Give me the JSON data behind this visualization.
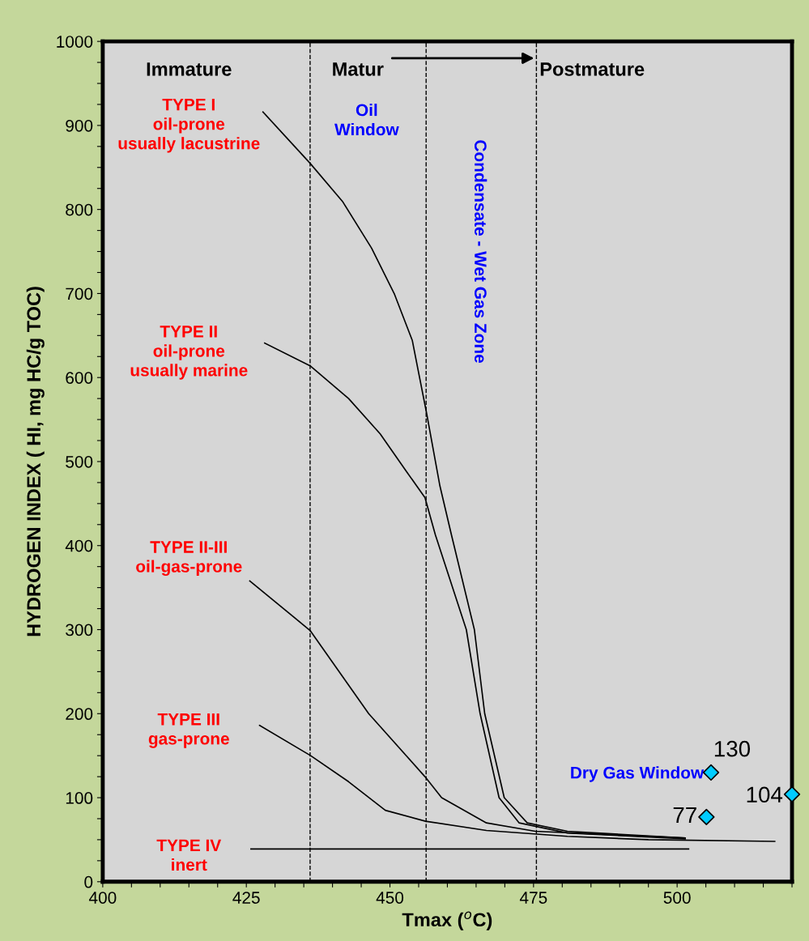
{
  "chart_data": {
    "type": "line",
    "xlabel": "Tmax ($^{o}$C)",
    "ylabel": "HYDROGEN INDEX ( HI, mg HC/g TOC)",
    "xlim": [
      400,
      520
    ],
    "ylim": [
      0,
      1000
    ],
    "xticks": [
      400,
      {
        "value": 405,
        "label": null
      },
      {
        "value": 410,
        "label": null
      },
      {
        "value": 415,
        "label": null
      },
      {
        "value": 420,
        "label": null
      },
      425,
      {
        "value": 430,
        "label": null
      },
      {
        "value": 435,
        "label": null
      },
      {
        "value": 440,
        "label": null
      },
      {
        "value": 445,
        "label": null
      },
      450,
      {
        "value": 455,
        "label": null
      },
      {
        "value": 460,
        "label": null
      },
      {
        "value": 465,
        "label": null
      },
      {
        "value": 470,
        "label": null
      },
      475,
      {
        "value": 480,
        "label": null
      },
      {
        "value": 485,
        "label": null
      },
      {
        "value": 490,
        "label": null
      },
      {
        "value": 495,
        "label": null
      },
      500,
      {
        "value": 505,
        "label": null
      },
      {
        "value": 510,
        "label": null
      },
      {
        "value": 515,
        "label": null
      },
      {
        "value": 520,
        "label": null
      }
    ],
    "yticks": [
      0,
      {
        "value": 25,
        "label": null
      },
      {
        "value": 50,
        "label": null
      },
      {
        "value": 75,
        "label": null
      },
      100,
      {
        "value": 125,
        "label": null
      },
      {
        "value": 150,
        "label": null
      },
      {
        "value": 175,
        "label": null
      },
      200,
      {
        "value": 225,
        "label": null
      },
      {
        "value": 250,
        "label": null
      },
      {
        "value": 275,
        "label": null
      },
      300,
      {
        "value": 325,
        "label": null
      },
      {
        "value": 350,
        "label": null
      },
      {
        "value": 375,
        "label": null
      },
      400,
      {
        "value": 425,
        "label": null
      },
      {
        "value": 450,
        "label": null
      },
      {
        "value": 475,
        "label": null
      },
      500,
      {
        "value": 525,
        "label": null
      },
      {
        "value": 550,
        "label": null
      },
      {
        "value": 575,
        "label": null
      },
      600,
      {
        "value": 625,
        "label": null
      },
      {
        "value": 650,
        "label": null
      },
      {
        "value": 675,
        "label": null
      },
      700,
      {
        "value": 725,
        "label": null
      },
      {
        "value": 750,
        "label": null
      },
      {
        "value": 775,
        "label": null
      },
      800,
      {
        "value": 825,
        "label": null
      },
      {
        "value": 850,
        "label": null
      },
      {
        "value": 875,
        "label": null
      },
      900,
      {
        "value": 925,
        "label": null
      },
      {
        "value": 950,
        "label": null
      },
      {
        "value": 975,
        "label": null
      },
      1000
    ],
    "grid": false,
    "line_style": "solid",
    "marker": "none",
    "series": [
      {
        "color": "#000000",
        "x": [
          427.9,
          436.1,
          441.8,
          446.8,
          450.8,
          453.9,
          454.9,
          456.4,
          458.7,
          460.7,
          464.7,
          466.5,
          469.9,
          473.9,
          480.9,
          501.4
        ],
        "values": [
          916,
          855,
          809,
          754,
          699,
          644,
          609,
          557,
          471,
          413,
          300,
          200,
          100,
          70,
          60,
          52
        ]
      },
      {
        "color": "#000000",
        "x": [
          428.2,
          436.1,
          442.8,
          448.3,
          452.9,
          456.1,
          457.9,
          463.3,
          465.7,
          469.0,
          472.5,
          480.9,
          501.4
        ],
        "values": [
          641,
          614,
          575,
          533,
          488,
          457,
          413,
          300,
          200,
          100,
          70,
          58,
          51
        ]
      },
      {
        "color": "#000000",
        "x": [
          425.6,
          436.1,
          446.3,
          456.1,
          459.0,
          466.8,
          475.3,
          501.4
        ],
        "values": [
          358,
          299,
          200,
          125,
          100,
          70,
          60,
          52
        ]
      },
      {
        "color": "#000000",
        "x": [
          427.3,
          436.2,
          442.8,
          449.2,
          456.2,
          466.8,
          480.9,
          495.0,
          517.0
        ],
        "values": [
          186,
          150,
          119,
          85,
          72,
          61,
          54,
          50,
          48
        ]
      },
      {
        "color": "#000000",
        "x": [
          425.8,
          502.0
        ],
        "values": [
          39,
          39
        ]
      },
      {
        "type": "scatter",
        "marker": "diamond",
        "color": "#00ccff",
        "x": [
          505.9,
          505.1,
          520.0
        ],
        "values": [
          130,
          77,
          104
        ],
        "value_labels": [
          "130",
          "77",
          "104"
        ]
      }
    ],
    "ref_lines": [
      {
        "axis": "x",
        "value": 436.1,
        "line_style": "dashed",
        "color": "#000000"
      },
      {
        "axis": "x",
        "value": 456.3,
        "line_style": "dashed",
        "color": "#000000"
      },
      {
        "axis": "x",
        "value": 475.5,
        "line_style": "dashed",
        "color": "#000000"
      }
    ],
    "annotations": [
      "Immature",
      "Matur",
      "Postmature",
      "TYPE I\noil-prone\nusually lacustrine",
      "TYPE II\noil-prone\nusually marine",
      "TYPE II-III\noil-gas-prone",
      "TYPE III\ngas-prone",
      "TYPE IV\ninert",
      "Oil\nWindow",
      "Condensate - Wet Gas Zone",
      "Dry Gas Window"
    ]
  }
}
